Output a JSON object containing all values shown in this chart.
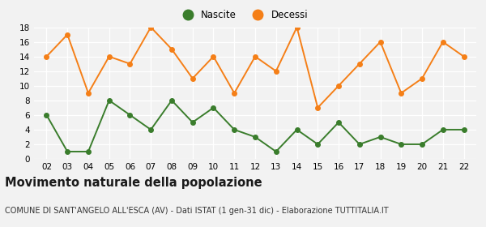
{
  "years": [
    2,
    3,
    4,
    5,
    6,
    7,
    8,
    9,
    10,
    11,
    12,
    13,
    14,
    15,
    16,
    17,
    18,
    19,
    20,
    21,
    22
  ],
  "nascite": [
    6,
    1,
    1,
    8,
    6,
    4,
    8,
    5,
    7,
    4,
    3,
    1,
    4,
    2,
    5,
    2,
    3,
    2,
    2,
    4,
    4
  ],
  "decessi": [
    14,
    17,
    9,
    14,
    13,
    18,
    15,
    11,
    14,
    9,
    14,
    12,
    18,
    7,
    10,
    13,
    16,
    9,
    11,
    16,
    14
  ],
  "nascite_color": "#3a7d2c",
  "decessi_color": "#f57f17",
  "background_color": "#f2f2f2",
  "grid_color": "#ffffff",
  "title": "Movimento naturale della popolazione",
  "subtitle": "COMUNE DI SANT'ANGELO ALL'ESCA (AV) - Dati ISTAT (1 gen-31 dic) - Elaborazione TUTTITALIA.IT",
  "legend_nascite": "Nascite",
  "legend_decessi": "Decessi",
  "ylim": [
    0,
    18
  ],
  "yticks": [
    0,
    2,
    4,
    6,
    8,
    10,
    12,
    14,
    16,
    18
  ],
  "title_fontsize": 10.5,
  "subtitle_fontsize": 7.0,
  "marker_size": 4,
  "line_width": 1.4,
  "tick_fontsize": 7.5
}
